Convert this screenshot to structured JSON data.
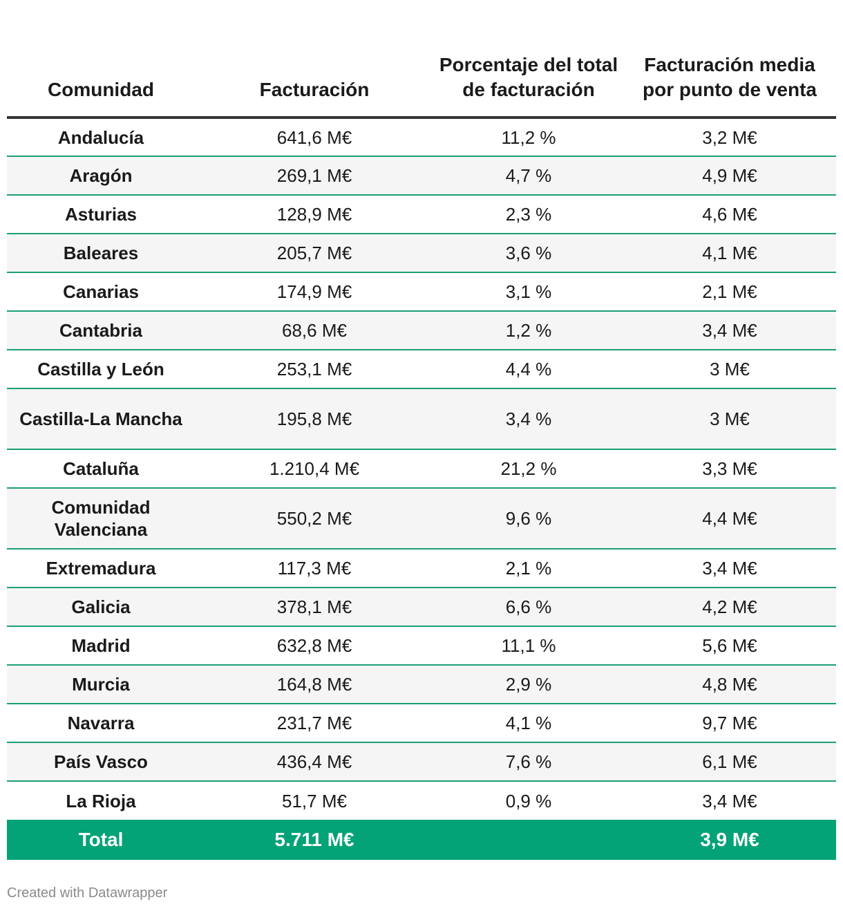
{
  "chart_data": {
    "type": "table",
    "columns": [
      "Comunidad",
      "Facturación",
      "Porcentaje del total de facturación",
      "Facturación media por punto de venta"
    ],
    "rows": [
      [
        "Andalucía",
        "641,6 M€",
        "11,2 %",
        "3,2 M€"
      ],
      [
        "Aragón",
        "269,1 M€",
        "4,7 %",
        "4,9 M€"
      ],
      [
        "Asturias",
        "128,9 M€",
        "2,3 %",
        "4,6 M€"
      ],
      [
        "Baleares",
        "205,7 M€",
        "3,6 %",
        "4,1 M€"
      ],
      [
        "Canarias",
        "174,9 M€",
        "3,1 %",
        "2,1 M€"
      ],
      [
        "Cantabria",
        "68,6 M€",
        "1,2 %",
        "3,4 M€"
      ],
      [
        "Castilla y León",
        "253,1 M€",
        "4,4 %",
        "3 M€"
      ],
      [
        "Castilla-La Mancha",
        "195,8 M€",
        "3,4 %",
        "3 M€"
      ],
      [
        "Cataluña",
        "1.210,4 M€",
        "21,2 %",
        "3,3 M€"
      ],
      [
        "Comunidad Valenciana",
        "550,2 M€",
        "9,6 %",
        "4,4 M€"
      ],
      [
        "Extremadura",
        "117,3 M€",
        "2,1 %",
        "3,4 M€"
      ],
      [
        "Galicia",
        "378,1 M€",
        "6,6 %",
        "4,2 M€"
      ],
      [
        "Madrid",
        "632,8 M€",
        "11,1 %",
        "5,6 M€"
      ],
      [
        "Murcia",
        "164,8 M€",
        "2,9 %",
        "4,8 M€"
      ],
      [
        "Navarra",
        "231,7 M€",
        "4,1 %",
        "9,7 M€"
      ],
      [
        "País Vasco",
        "436,4 M€",
        "7,6 %",
        "6,1 M€"
      ],
      [
        "La Rioja",
        "51,7 M€",
        "0,9 %",
        "3,4 M€"
      ]
    ],
    "total": [
      "Total",
      "5.711 M€",
      "",
      "3,9 M€"
    ],
    "colors": {
      "total_bg": "#03a277",
      "row_border": "#1a9e76",
      "header_border": "#333333"
    }
  },
  "footer": {
    "credit": "Created with Datawrapper"
  }
}
